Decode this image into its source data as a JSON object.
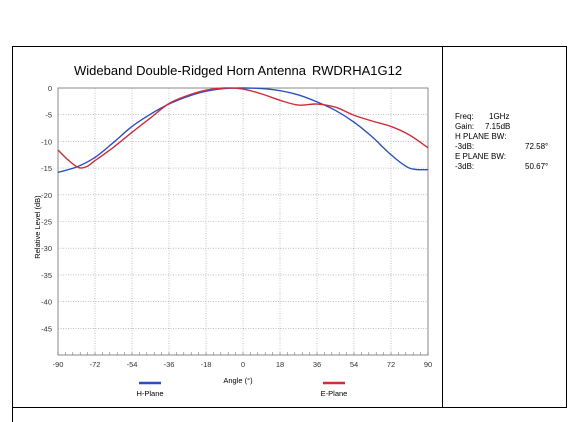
{
  "chart_data": {
    "type": "line",
    "title": "Wideband Double-Ridged Horn Antenna",
    "model": "RWDRHA1G12",
    "xlabel": "Angle (°)",
    "ylabel": "Relative Level (dB)",
    "xlim": [
      -90,
      90
    ],
    "ylim": [
      -50,
      0
    ],
    "xticks": [
      "-90",
      "-72",
      "-54",
      "-36",
      "-18",
      "0",
      "18",
      "36",
      "54",
      "72",
      "90"
    ],
    "yticks": [
      "0",
      "-5",
      "-10",
      "-15",
      "-20",
      "-25",
      "-30",
      "-35",
      "-40",
      "-45"
    ],
    "grid": true,
    "legend_position": "bottom",
    "series": [
      {
        "name": "H-Plane",
        "color": "#2c4fc0",
        "x": [
          -90,
          -81,
          -72,
          -63,
          -54,
          -45,
          -36,
          -27,
          -18,
          -9,
          0,
          9,
          18,
          27,
          36,
          45,
          54,
          63,
          72,
          81,
          90
        ],
        "y": [
          -15.8,
          -14.8,
          -13.0,
          -10.2,
          -7.2,
          -4.9,
          -3.0,
          -1.6,
          -0.6,
          -0.1,
          0.0,
          -0.1,
          -0.5,
          -1.3,
          -2.6,
          -4.2,
          -6.4,
          -9.2,
          -12.5,
          -15.0,
          -15.3
        ]
      },
      {
        "name": "E-Plane",
        "color": "#d02c3c",
        "x": [
          -90,
          -85,
          -80,
          -76,
          -72,
          -63,
          -54,
          -45,
          -36,
          -27,
          -18,
          -9,
          0,
          9,
          18,
          27,
          36,
          45,
          54,
          63,
          72,
          81,
          90
        ],
        "y": [
          -11.6,
          -13.5,
          -14.9,
          -14.7,
          -13.6,
          -11.1,
          -8.3,
          -5.6,
          -2.9,
          -1.4,
          -0.4,
          0.0,
          -0.2,
          -1.1,
          -2.3,
          -3.2,
          -3.0,
          -3.6,
          -5.1,
          -6.2,
          -7.2,
          -8.8,
          -11.2
        ]
      }
    ]
  },
  "info": {
    "freq_label": "Freq:",
    "freq_value": "1GHz",
    "gain_label": "Gain:",
    "gain_value": "7.15dB",
    "h_plane_bw_label": "H PLANE BW:",
    "h_minus3db_label": "-3dB:",
    "h_minus3db_value": "72.58°",
    "e_plane_bw_label": "E PLANE BW:",
    "e_minus3db_label": "-3dB:",
    "e_minus3db_value": "50.67°"
  }
}
